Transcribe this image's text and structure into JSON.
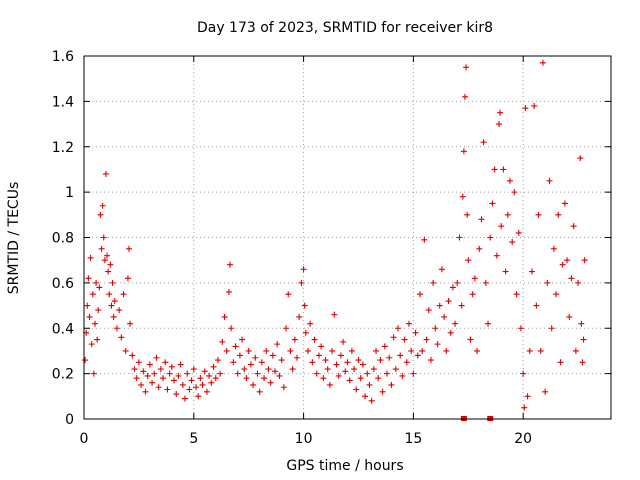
{
  "chart_data": {
    "type": "scatter",
    "title": "Day 173 of 2023, SRMTID for receiver kir8",
    "xlabel": "GPS time / hours",
    "ylabel": "SRMTID / TECUs",
    "xlim": [
      0,
      24
    ],
    "ylim": [
      0,
      1.6
    ],
    "xticks": [
      0,
      5,
      10,
      15,
      20
    ],
    "xtick_labels": [
      "0",
      "5",
      "10",
      "15",
      "20"
    ],
    "yticks": [
      0,
      0.2,
      0.4,
      0.6,
      0.8,
      1.0,
      1.2,
      1.4,
      1.6
    ],
    "ytick_labels": [
      "0",
      "0.2",
      "0.4",
      "0.6",
      "0.8",
      "1",
      "1.2",
      "1.4",
      "1.6"
    ],
    "grid": true,
    "marker": "plus",
    "color": "#e00000",
    "series": [
      {
        "name": "kir8",
        "points": [
          [
            0.05,
            0.26
          ],
          [
            0.1,
            0.38
          ],
          [
            0.15,
            0.5
          ],
          [
            0.2,
            0.62
          ],
          [
            0.25,
            0.45
          ],
          [
            0.3,
            0.71
          ],
          [
            0.35,
            0.33
          ],
          [
            0.4,
            0.55
          ],
          [
            0.45,
            0.2
          ],
          [
            0.5,
            0.42
          ],
          [
            0.55,
            0.6
          ],
          [
            0.6,
            0.35
          ],
          [
            0.65,
            0.48
          ],
          [
            0.7,
            0.58
          ],
          [
            0.75,
            0.9
          ],
          [
            0.8,
            0.75
          ],
          [
            0.85,
            0.94
          ],
          [
            0.9,
            0.8
          ],
          [
            0.95,
            0.7
          ],
          [
            1.0,
            1.08
          ],
          [
            1.05,
            0.72
          ],
          [
            1.1,
            0.65
          ],
          [
            1.15,
            0.55
          ],
          [
            1.2,
            0.68
          ],
          [
            1.25,
            0.5
          ],
          [
            1.3,
            0.6
          ],
          [
            1.35,
            0.45
          ],
          [
            1.4,
            0.52
          ],
          [
            1.5,
            0.4
          ],
          [
            1.6,
            0.48
          ],
          [
            1.7,
            0.36
          ],
          [
            1.8,
            0.55
          ],
          [
            1.9,
            0.3
          ],
          [
            2.0,
            0.62
          ],
          [
            2.05,
            0.75
          ],
          [
            2.1,
            0.42
          ],
          [
            2.2,
            0.28
          ],
          [
            2.3,
            0.22
          ],
          [
            2.4,
            0.18
          ],
          [
            2.5,
            0.25
          ],
          [
            2.6,
            0.15
          ],
          [
            2.7,
            0.21
          ],
          [
            2.8,
            0.12
          ],
          [
            2.9,
            0.19
          ],
          [
            3.0,
            0.24
          ],
          [
            3.1,
            0.16
          ],
          [
            3.2,
            0.2
          ],
          [
            3.3,
            0.27
          ],
          [
            3.4,
            0.14
          ],
          [
            3.5,
            0.22
          ],
          [
            3.6,
            0.18
          ],
          [
            3.7,
            0.25
          ],
          [
            3.8,
            0.13
          ],
          [
            3.9,
            0.2
          ],
          [
            4.0,
            0.23
          ],
          [
            4.1,
            0.17
          ],
          [
            4.2,
            0.11
          ],
          [
            4.3,
            0.19
          ],
          [
            4.4,
            0.24
          ],
          [
            4.5,
            0.15
          ],
          [
            4.6,
            0.09
          ],
          [
            4.7,
            0.2
          ],
          [
            4.8,
            0.13
          ],
          [
            4.9,
            0.17
          ],
          [
            5.0,
            0.22
          ],
          [
            5.1,
            0.14
          ],
          [
            5.2,
            0.1
          ],
          [
            5.3,
            0.18
          ],
          [
            5.4,
            0.15
          ],
          [
            5.5,
            0.21
          ],
          [
            5.6,
            0.12
          ],
          [
            5.7,
            0.19
          ],
          [
            5.8,
            0.16
          ],
          [
            5.9,
            0.23
          ],
          [
            6.0,
            0.18
          ],
          [
            6.1,
            0.26
          ],
          [
            6.2,
            0.2
          ],
          [
            6.3,
            0.34
          ],
          [
            6.4,
            0.45
          ],
          [
            6.5,
            0.3
          ],
          [
            6.6,
            0.56
          ],
          [
            6.65,
            0.68
          ],
          [
            6.7,
            0.4
          ],
          [
            6.8,
            0.25
          ],
          [
            6.9,
            0.32
          ],
          [
            7.0,
            0.2
          ],
          [
            7.1,
            0.28
          ],
          [
            7.2,
            0.35
          ],
          [
            7.3,
            0.22
          ],
          [
            7.4,
            0.18
          ],
          [
            7.5,
            0.3
          ],
          [
            7.6,
            0.24
          ],
          [
            7.7,
            0.15
          ],
          [
            7.8,
            0.27
          ],
          [
            7.9,
            0.2
          ],
          [
            8.0,
            0.12
          ],
          [
            8.1,
            0.25
          ],
          [
            8.2,
            0.18
          ],
          [
            8.3,
            0.3
          ],
          [
            8.4,
            0.22
          ],
          [
            8.5,
            0.16
          ],
          [
            8.6,
            0.28
          ],
          [
            8.7,
            0.21
          ],
          [
            8.8,
            0.33
          ],
          [
            8.9,
            0.19
          ],
          [
            9.0,
            0.26
          ],
          [
            9.1,
            0.14
          ],
          [
            9.2,
            0.4
          ],
          [
            9.3,
            0.55
          ],
          [
            9.4,
            0.3
          ],
          [
            9.5,
            0.22
          ],
          [
            9.6,
            0.35
          ],
          [
            9.7,
            0.27
          ],
          [
            9.8,
            0.45
          ],
          [
            9.9,
            0.6
          ],
          [
            10.0,
            0.66
          ],
          [
            10.05,
            0.5
          ],
          [
            10.1,
            0.38
          ],
          [
            10.2,
            0.3
          ],
          [
            10.3,
            0.42
          ],
          [
            10.4,
            0.25
          ],
          [
            10.5,
            0.35
          ],
          [
            10.6,
            0.2
          ],
          [
            10.7,
            0.28
          ],
          [
            10.8,
            0.32
          ],
          [
            10.9,
            0.18
          ],
          [
            11.0,
            0.26
          ],
          [
            11.1,
            0.22
          ],
          [
            11.2,
            0.15
          ],
          [
            11.3,
            0.3
          ],
          [
            11.4,
            0.46
          ],
          [
            11.5,
            0.24
          ],
          [
            11.6,
            0.19
          ],
          [
            11.7,
            0.28
          ],
          [
            11.8,
            0.34
          ],
          [
            11.9,
            0.21
          ],
          [
            12.0,
            0.25
          ],
          [
            12.1,
            0.17
          ],
          [
            12.2,
            0.3
          ],
          [
            12.3,
            0.22
          ],
          [
            12.4,
            0.13
          ],
          [
            12.5,
            0.26
          ],
          [
            12.6,
            0.18
          ],
          [
            12.7,
            0.24
          ],
          [
            12.8,
            0.1
          ],
          [
            12.9,
            0.2
          ],
          [
            13.0,
            0.15
          ],
          [
            13.1,
            0.08
          ],
          [
            13.2,
            0.22
          ],
          [
            13.3,
            0.3
          ],
          [
            13.4,
            0.18
          ],
          [
            13.5,
            0.26
          ],
          [
            13.6,
            0.12
          ],
          [
            13.7,
            0.32
          ],
          [
            13.8,
            0.2
          ],
          [
            13.9,
            0.27
          ],
          [
            14.0,
            0.15
          ],
          [
            14.1,
            0.36
          ],
          [
            14.2,
            0.22
          ],
          [
            14.3,
            0.4
          ],
          [
            14.4,
            0.28
          ],
          [
            14.5,
            0.19
          ],
          [
            14.6,
            0.35
          ],
          [
            14.7,
            0.25
          ],
          [
            14.8,
            0.42
          ],
          [
            14.9,
            0.3
          ],
          [
            15.0,
            0.2
          ],
          [
            15.1,
            0.38
          ],
          [
            15.2,
            0.28
          ],
          [
            15.3,
            0.55
          ],
          [
            15.4,
            0.3
          ],
          [
            15.5,
            0.79
          ],
          [
            15.6,
            0.35
          ],
          [
            15.7,
            0.48
          ],
          [
            15.8,
            0.26
          ],
          [
            15.9,
            0.6
          ],
          [
            16.0,
            0.4
          ],
          [
            16.1,
            0.33
          ],
          [
            16.2,
            0.5
          ],
          [
            16.3,
            0.66
          ],
          [
            16.4,
            0.45
          ],
          [
            16.5,
            0.3
          ],
          [
            16.6,
            0.52
          ],
          [
            16.7,
            0.38
          ],
          [
            16.8,
            0.58
          ],
          [
            16.9,
            0.42
          ],
          [
            17.0,
            0.6
          ],
          [
            17.1,
            0.8
          ],
          [
            17.2,
            0.5
          ],
          [
            17.25,
            0.98
          ],
          [
            17.3,
            1.18
          ],
          [
            17.35,
            1.42
          ],
          [
            17.4,
            1.55
          ],
          [
            17.45,
            0.9
          ],
          [
            17.5,
            0.7
          ],
          [
            17.6,
            0.35
          ],
          [
            17.7,
            0.55
          ],
          [
            17.8,
            0.62
          ],
          [
            17.9,
            0.3
          ],
          [
            18.0,
            0.75
          ],
          [
            18.1,
            0.88
          ],
          [
            18.2,
            1.22
          ],
          [
            18.3,
            0.6
          ],
          [
            18.4,
            0.42
          ],
          [
            18.5,
            0.8
          ],
          [
            18.6,
            0.95
          ],
          [
            18.7,
            1.1
          ],
          [
            18.8,
            0.72
          ],
          [
            18.9,
            1.3
          ],
          [
            18.95,
            1.35
          ],
          [
            19.0,
            0.85
          ],
          [
            19.1,
            1.1
          ],
          [
            19.2,
            0.65
          ],
          [
            19.3,
            0.9
          ],
          [
            19.4,
            1.05
          ],
          [
            19.5,
            0.78
          ],
          [
            19.6,
            1.0
          ],
          [
            19.7,
            0.55
          ],
          [
            19.8,
            0.82
          ],
          [
            19.9,
            0.4
          ],
          [
            20.0,
            0.2
          ],
          [
            20.05,
            0.05
          ],
          [
            20.1,
            1.37
          ],
          [
            20.2,
            0.1
          ],
          [
            20.3,
            0.3
          ],
          [
            20.4,
            0.65
          ],
          [
            20.5,
            1.38
          ],
          [
            20.6,
            0.5
          ],
          [
            20.7,
            0.9
          ],
          [
            20.8,
            0.3
          ],
          [
            20.9,
            1.57
          ],
          [
            21.0,
            0.12
          ],
          [
            21.1,
            0.6
          ],
          [
            21.2,
            1.05
          ],
          [
            21.3,
            0.4
          ],
          [
            21.4,
            0.75
          ],
          [
            21.5,
            0.55
          ],
          [
            21.6,
            0.9
          ],
          [
            21.7,
            0.25
          ],
          [
            21.8,
            0.68
          ],
          [
            21.9,
            0.95
          ],
          [
            22.0,
            0.7
          ],
          [
            22.1,
            0.45
          ],
          [
            22.2,
            0.62
          ],
          [
            22.3,
            0.85
          ],
          [
            22.4,
            0.3
          ],
          [
            22.5,
            0.6
          ],
          [
            22.6,
            1.15
          ],
          [
            22.65,
            0.42
          ],
          [
            22.7,
            0.25
          ],
          [
            22.75,
            0.35
          ],
          [
            22.8,
            0.7
          ]
        ]
      }
    ],
    "gap_markers_x": [
      17.3,
      18.5
    ]
  }
}
